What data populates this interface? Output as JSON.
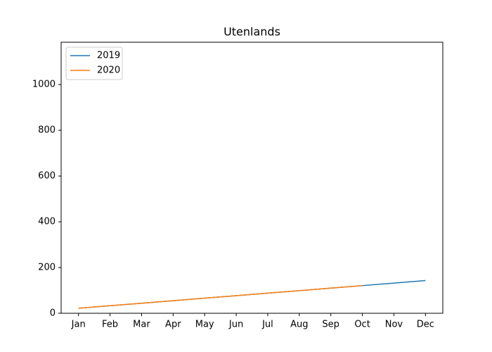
{
  "chart_data": {
    "type": "line",
    "title": "Utenlands",
    "categories": [
      "Jan",
      "Feb",
      "Mar",
      "Apr",
      "May",
      "Jun",
      "Jul",
      "Aug",
      "Sep",
      "Oct",
      "Nov",
      "Dec"
    ],
    "series": [
      {
        "name": "2019",
        "color": "#1f77b4",
        "values": [
          22,
          33,
          44,
          55,
          66,
          77,
          88,
          99,
          110,
          121,
          132,
          143
        ]
      },
      {
        "name": "2020",
        "color": "#ff7f0e",
        "values": [
          22,
          33,
          44,
          55,
          66,
          77,
          88,
          99,
          110,
          121,
          null,
          null
        ]
      }
    ],
    "ylim": [
      0,
      1185
    ],
    "yticks": [
      0,
      200,
      400,
      600,
      800,
      1000
    ],
    "legend": "upper left"
  }
}
